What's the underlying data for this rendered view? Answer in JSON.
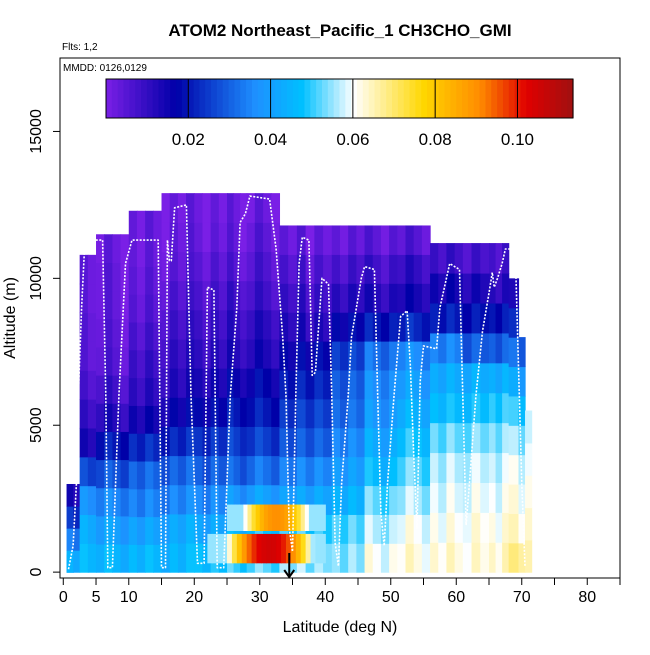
{
  "chart_data": {
    "type": "heatmap",
    "title": "ATOM2 Northeast_Pacific_1 CH3CHO_GMI",
    "flights_label": "Flts: 1,2",
    "dates_label": "MMDD: 0126,0129",
    "xlabel": "Latitude (deg N)",
    "ylabel": "Altitude (m)",
    "xlim": [
      -0.5,
      85
    ],
    "ylim": [
      -200,
      17500
    ],
    "x_ticks": [
      0,
      5,
      10,
      20,
      30,
      40,
      50,
      60,
      70,
      80
    ],
    "x_minor_ticks": [
      15,
      25,
      35,
      45,
      55,
      65,
      75,
      85
    ],
    "y_ticks": [
      0,
      5000,
      10000,
      15000
    ],
    "colorbar": {
      "min": 0.0,
      "max": 0.1135,
      "ticks": [
        "0.02",
        "0.04",
        "0.06",
        "0.08",
        "0.10"
      ],
      "tick_values": [
        0.02,
        0.04,
        0.06,
        0.08,
        0.1
      ],
      "colors": [
        "#7a1fe6",
        "#0000a8",
        "#1e90ff",
        "#00c0ff",
        "#ffffff",
        "#ffd700",
        "#ff8c00",
        "#e00000",
        "#a01010"
      ],
      "color_stops": [
        0,
        0.15,
        0.32,
        0.42,
        0.53,
        0.68,
        0.8,
        0.9,
        1.0
      ]
    },
    "profile_columns": [
      {
        "lat_min": 0.5,
        "lat_max": 1.5,
        "top": 600,
        "values": [
          0.04
        ]
      },
      {
        "lat_min": 0.5,
        "lat_max": 2.5,
        "top": 3000,
        "values": [
          0.045,
          0.035,
          0.025,
          0.015
        ]
      },
      {
        "lat_min": 2.5,
        "lat_max": 5,
        "top": 10800,
        "values": [
          0.045,
          0.042,
          0.036,
          0.025,
          0.012,
          0.008,
          0.005,
          0.003,
          0.003,
          0.002,
          0.002
        ]
      },
      {
        "lat_min": 5,
        "lat_max": 10,
        "top": 11500,
        "values": [
          0.045,
          0.04,
          0.035,
          0.028,
          0.02,
          0.012,
          0.008,
          0.005,
          0.004,
          0.003,
          0.003,
          0.002
        ]
      },
      {
        "lat_min": 10,
        "lat_max": 15,
        "top": 12300,
        "values": [
          0.045,
          0.04,
          0.034,
          0.03,
          0.022,
          0.014,
          0.01,
          0.008,
          0.006,
          0.004,
          0.003,
          0.002,
          0.002
        ]
      },
      {
        "lat_min": 15,
        "lat_max": 20,
        "top": 12900,
        "values": [
          0.045,
          0.042,
          0.035,
          0.03,
          0.022,
          0.016,
          0.012,
          0.01,
          0.008,
          0.006,
          0.004,
          0.003,
          0.002
        ]
      },
      {
        "lat_min": 20,
        "lat_max": 25,
        "top": 12900,
        "values": [
          0.048,
          0.042,
          0.036,
          0.03,
          0.024,
          0.018,
          0.014,
          0.011,
          0.009,
          0.007,
          0.005,
          0.003,
          0.002
        ]
      },
      {
        "lat_min": 25,
        "lat_max": 28,
        "top": 12900,
        "values": [
          0.05,
          0.045,
          0.038,
          0.03,
          0.025,
          0.02,
          0.016,
          0.012,
          0.01,
          0.008,
          0.005,
          0.003,
          0.002
        ]
      },
      {
        "lat_min": 28,
        "lat_max": 33,
        "top": 12900,
        "values": [
          0.052,
          0.048,
          0.04,
          0.032,
          0.025,
          0.02,
          0.017,
          0.013,
          0.011,
          0.008,
          0.006,
          0.004,
          0.002
        ]
      },
      {
        "lat_min": 33,
        "lat_max": 37,
        "top": 11800,
        "values": [
          0.055,
          0.05,
          0.04,
          0.034,
          0.028,
          0.024,
          0.02,
          0.016,
          0.012,
          0.009,
          0.006,
          0.003
        ]
      },
      {
        "lat_min": 37,
        "lat_max": 41,
        "top": 11800,
        "values": [
          0.055,
          0.05,
          0.042,
          0.036,
          0.03,
          0.026,
          0.022,
          0.018,
          0.012,
          0.009,
          0.006,
          0.003
        ]
      },
      {
        "lat_min": 41,
        "lat_max": 46,
        "top": 11800,
        "values": [
          0.055,
          0.052,
          0.045,
          0.04,
          0.036,
          0.032,
          0.03,
          0.026,
          0.018,
          0.012,
          0.008,
          0.004
        ]
      },
      {
        "lat_min": 46,
        "lat_max": 51,
        "top": 11800,
        "values": [
          0.06,
          0.056,
          0.052,
          0.046,
          0.042,
          0.038,
          0.036,
          0.032,
          0.02,
          0.012,
          0.008,
          0.004
        ]
      },
      {
        "lat_min": 51,
        "lat_max": 56,
        "top": 11800,
        "values": [
          0.062,
          0.06,
          0.056,
          0.052,
          0.048,
          0.044,
          0.04,
          0.036,
          0.022,
          0.014,
          0.01,
          0.005
        ]
      },
      {
        "lat_min": 56,
        "lat_max": 61,
        "top": 11200,
        "values": [
          0.062,
          0.06,
          0.058,
          0.056,
          0.052,
          0.046,
          0.042,
          0.034,
          0.02,
          0.014,
          0.008
        ]
      },
      {
        "lat_min": 61,
        "lat_max": 65,
        "top": 11200,
        "values": [
          0.063,
          0.062,
          0.06,
          0.058,
          0.054,
          0.048,
          0.044,
          0.03,
          0.02,
          0.014,
          0.008
        ]
      },
      {
        "lat_min": 65,
        "lat_max": 68,
        "top": 11200,
        "values": [
          0.064,
          0.062,
          0.06,
          0.058,
          0.055,
          0.05,
          0.044,
          0.03,
          0.02,
          0.012,
          0.008
        ]
      },
      {
        "lat_min": 68,
        "lat_max": 69.5,
        "top": 10000,
        "values": [
          0.066,
          0.062,
          0.06,
          0.058,
          0.054,
          0.048,
          0.04,
          0.03,
          0.02,
          0.01
        ]
      },
      {
        "lat_min": 69.5,
        "lat_max": 70.5,
        "top": 8000,
        "values": [
          0.068,
          0.062,
          0.06,
          0.058,
          0.054,
          0.048,
          0.04,
          0.03
        ]
      },
      {
        "lat_min": 70.5,
        "lat_max": 71.5,
        "top": 5500,
        "values": [
          0.064,
          0.062,
          0.06,
          0.058,
          0.056
        ]
      }
    ],
    "hotspots": [
      {
        "lat_min": 22,
        "lat_max": 40,
        "alt_min": 300,
        "alt_max": 1300,
        "lat_center": 31.5,
        "lat_halfwidth": 6.5,
        "peak": 0.105
      },
      {
        "lat_min": 25,
        "lat_max": 40,
        "alt_min": 1400,
        "alt_max": 2300,
        "lat_center": 32.5,
        "lat_halfwidth": 5.5,
        "peak": 0.09
      }
    ],
    "flight_track": [
      [
        0.8,
        100
      ],
      [
        1.5,
        900
      ],
      [
        2.0,
        3000
      ],
      [
        2.3,
        6000
      ],
      [
        2.8,
        9000
      ],
      [
        3.2,
        10800
      ],
      [
        3.5,
        11300
      ],
      [
        6.0,
        11300
      ],
      [
        6.5,
        6000
      ],
      [
        6.8,
        150
      ],
      [
        7.5,
        150
      ],
      [
        8.5,
        6000
      ],
      [
        9.5,
        10500
      ],
      [
        10.5,
        11300
      ],
      [
        14.5,
        11300
      ],
      [
        15.0,
        150
      ],
      [
        15.6,
        150
      ],
      [
        15.9,
        11300
      ],
      [
        16.2,
        10600
      ],
      [
        16.5,
        10600
      ],
      [
        17.0,
        12400
      ],
      [
        18.8,
        12500
      ],
      [
        19.5,
        6000
      ],
      [
        20.5,
        300
      ],
      [
        21.5,
        300
      ],
      [
        22.0,
        9700
      ],
      [
        23.0,
        9600
      ],
      [
        23.5,
        150
      ],
      [
        24.5,
        150
      ],
      [
        25.5,
        6000
      ],
      [
        26.5,
        9000
      ],
      [
        27.0,
        11900
      ],
      [
        27.8,
        12200
      ],
      [
        28.5,
        12800
      ],
      [
        31.5,
        12700
      ],
      [
        32.5,
        11000
      ],
      [
        33.5,
        8000
      ],
      [
        34.0,
        6000
      ],
      [
        34.5,
        1500
      ],
      [
        35.0,
        700
      ],
      [
        35.5,
        6000
      ],
      [
        36.0,
        10500
      ],
      [
        36.5,
        11400
      ],
      [
        37.5,
        11300
      ],
      [
        38.0,
        6700
      ],
      [
        38.5,
        6800
      ],
      [
        39.5,
        10000
      ],
      [
        40.5,
        9800
      ],
      [
        41.0,
        6000
      ],
      [
        41.5,
        1000
      ],
      [
        42.0,
        200
      ],
      [
        42.5,
        3000
      ],
      [
        43.5,
        6000
      ],
      [
        44.0,
        8000
      ],
      [
        45.5,
        10000
      ],
      [
        46.0,
        10400
      ],
      [
        47.5,
        10300
      ],
      [
        48.0,
        6000
      ],
      [
        48.5,
        2000
      ],
      [
        49.0,
        900
      ],
      [
        49.5,
        3000
      ],
      [
        50.5,
        6000
      ],
      [
        51.5,
        8700
      ],
      [
        52.5,
        8900
      ],
      [
        53.0,
        7000
      ],
      [
        53.5,
        4000
      ],
      [
        54.0,
        1500
      ],
      [
        54.5,
        6500
      ],
      [
        55.0,
        7700
      ],
      [
        57.0,
        7600
      ],
      [
        57.5,
        9000
      ],
      [
        59.0,
        10500
      ],
      [
        60.5,
        10300
      ],
      [
        61.0,
        6000
      ],
      [
        61.5,
        1600
      ],
      [
        62.0,
        3000
      ],
      [
        63.0,
        6000
      ],
      [
        64.0,
        8200
      ],
      [
        65.0,
        9500
      ],
      [
        65.5,
        10200
      ],
      [
        65.8,
        9700
      ],
      [
        66.3,
        10000
      ],
      [
        67.0,
        10500
      ],
      [
        67.5,
        11000
      ],
      [
        69.0,
        11000
      ],
      [
        69.5,
        7000
      ],
      [
        70.0,
        3000
      ],
      [
        70.5,
        200
      ]
    ],
    "marker": {
      "lat": 34.5,
      "label": "arrow"
    }
  }
}
